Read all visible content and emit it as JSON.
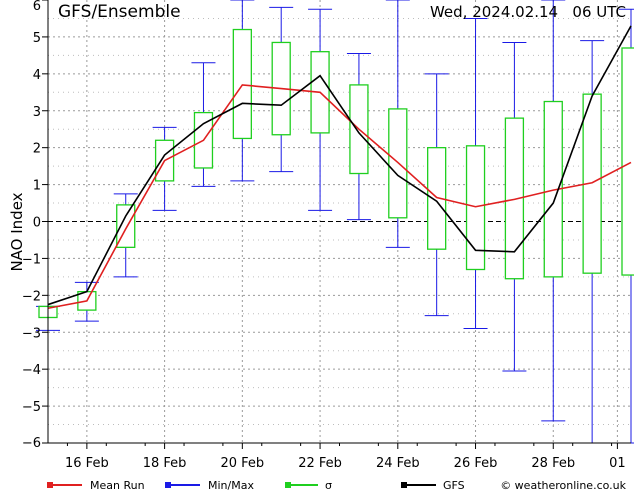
{
  "chart_data": {
    "type": "line",
    "title_left": "GFS/Ensemble",
    "title_right": "Wed, 2024.02.14   06 UTC",
    "ylabel": "NAO Index",
    "ylim": [
      -6,
      6
    ],
    "yticks": [
      -6,
      -5,
      -4,
      -3,
      -2,
      -1,
      0,
      1,
      2,
      3,
      4,
      5,
      6
    ],
    "xlim": [
      0,
      30
    ],
    "xticks": [
      {
        "x": 2,
        "label": "16 Feb"
      },
      {
        "x": 6,
        "label": "18 Feb"
      },
      {
        "x": 10,
        "label": "20 Feb"
      },
      {
        "x": 14,
        "label": "22 Feb"
      },
      {
        "x": 18,
        "label": "24 Feb"
      },
      {
        "x": 22,
        "label": "26 Feb"
      },
      {
        "x": 26,
        "label": "28 Feb"
      },
      {
        "x": 29.3,
        "label": "01"
      }
    ],
    "grid": true,
    "legend_position": "bottom",
    "colors": {
      "mean": "#e02020",
      "minmax": "#1a1ae6",
      "sigma": "#1fcf1f",
      "gfs": "#000000"
    },
    "legend": [
      {
        "key": "mean",
        "label": "Mean Run"
      },
      {
        "key": "minmax",
        "label": "Min/Max"
      },
      {
        "key": "sigma",
        "label": "σ"
      },
      {
        "key": "gfs",
        "label": "GFS"
      }
    ],
    "credit": "© weatheronline.co.uk",
    "steps": [
      {
        "x": 0,
        "min": -2.95,
        "max": -2.3,
        "slo": -2.6,
        "shi": -2.3,
        "mean": -2.35,
        "gfs": -2.25
      },
      {
        "x": 2,
        "min": -2.7,
        "max": -1.65,
        "slo": -2.4,
        "shi": -1.9,
        "mean": -2.15,
        "gfs": -1.9
      },
      {
        "x": 4,
        "min": -1.5,
        "max": 0.75,
        "slo": -0.7,
        "shi": 0.45,
        "mean": -0.2,
        "gfs": 0.15
      },
      {
        "x": 6,
        "min": 0.3,
        "max": 2.55,
        "slo": 1.1,
        "shi": 2.2,
        "mean": 1.65,
        "gfs": 1.8
      },
      {
        "x": 8,
        "min": 0.95,
        "max": 4.3,
        "slo": 1.45,
        "shi": 2.95,
        "mean": 2.2,
        "gfs": 2.65
      },
      {
        "x": 10,
        "min": 1.1,
        "max": 6.0,
        "slo": 2.25,
        "shi": 5.2,
        "mean": 3.7,
        "gfs": 3.2
      },
      {
        "x": 12,
        "min": 1.35,
        "max": 5.8,
        "slo": 2.35,
        "shi": 4.85,
        "mean": 3.6,
        "gfs": 3.15
      },
      {
        "x": 14,
        "min": 0.3,
        "max": 5.75,
        "slo": 2.4,
        "shi": 4.6,
        "mean": 3.5,
        "gfs": 3.95
      },
      {
        "x": 16,
        "min": 0.05,
        "max": 4.55,
        "slo": 1.3,
        "shi": 3.7,
        "mean": 2.5,
        "gfs": 2.4
      },
      {
        "x": 18,
        "min": -0.7,
        "max": 6.0,
        "slo": 0.1,
        "shi": 3.05,
        "mean": 1.6,
        "gfs": 1.25
      },
      {
        "x": 20,
        "min": -2.55,
        "max": 4.0,
        "slo": -0.75,
        "shi": 2.0,
        "mean": 0.65,
        "gfs": 0.55
      },
      {
        "x": 22,
        "min": -2.9,
        "max": 5.5,
        "slo": -1.3,
        "shi": 2.05,
        "mean": 0.4,
        "gfs": -0.78
      },
      {
        "x": 24,
        "min": -4.05,
        "max": 4.85,
        "slo": -1.55,
        "shi": 2.8,
        "mean": 0.6,
        "gfs": -0.82
      },
      {
        "x": 26,
        "min": -5.4,
        "max": 6.0,
        "slo": -1.5,
        "shi": 3.25,
        "mean": 0.85,
        "gfs": 0.5
      },
      {
        "x": 28,
        "min": -6.0,
        "max": 4.9,
        "slo": -1.4,
        "shi": 3.45,
        "mean": 1.05,
        "gfs": 3.4
      },
      {
        "x": 30,
        "min": -6.0,
        "max": 5.75,
        "slo": -1.45,
        "shi": 4.7,
        "mean": 1.6,
        "gfs": 5.3
      }
    ]
  }
}
